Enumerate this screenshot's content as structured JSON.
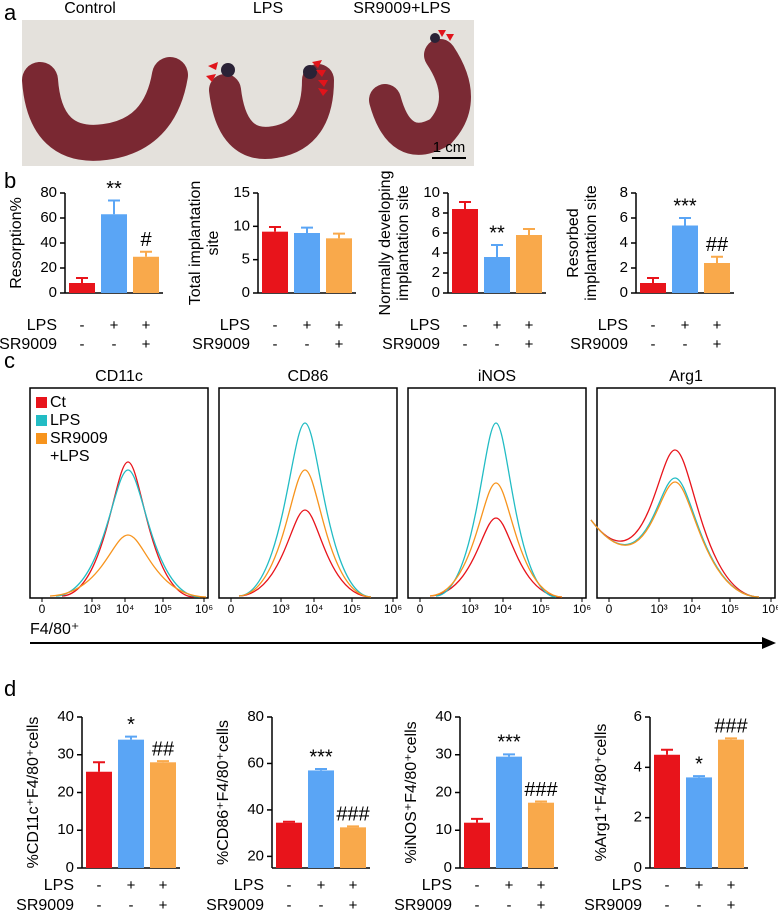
{
  "panel_labels": [
    "a",
    "b",
    "c",
    "d"
  ],
  "photo": {
    "groups": [
      "Control",
      "LPS",
      "SR9009+LPS"
    ],
    "scale_bar": "1 cm"
  },
  "chart_data": [
    {
      "type": "bar",
      "ylabel": [
        "Resorption%"
      ],
      "ylim": [
        0,
        80
      ],
      "yticks": [
        0,
        20,
        40,
        60,
        80
      ],
      "values": [
        8,
        63,
        29
      ],
      "errors": [
        4,
        11,
        4
      ],
      "colors": [
        "#e8141b",
        "#5aa5f5",
        "#f9a94b"
      ],
      "annotations": [
        null,
        "**",
        "#"
      ],
      "conditions": [
        {
          "name": "LPS",
          "values": [
            "-",
            "+",
            "+"
          ]
        },
        {
          "name": "SR9009",
          "values": [
            "-",
            "-",
            "+"
          ]
        }
      ]
    },
    {
      "type": "bar",
      "ylabel": [
        "Total implantation",
        "site"
      ],
      "ylim": [
        0,
        15
      ],
      "yticks": [
        0,
        5,
        10,
        15
      ],
      "values": [
        9.2,
        9.0,
        8.2
      ],
      "errors": [
        0.7,
        0.8,
        0.7
      ],
      "colors": [
        "#e8141b",
        "#5aa5f5",
        "#f9a94b"
      ],
      "annotations": [
        null,
        null,
        null
      ],
      "conditions": [
        {
          "name": "LPS",
          "values": [
            "-",
            "+",
            "+"
          ]
        },
        {
          "name": "SR9009",
          "values": [
            "-",
            "-",
            "+"
          ]
        }
      ]
    },
    {
      "type": "bar",
      "ylabel": [
        "Normally developing",
        "implantation site"
      ],
      "ylim": [
        0,
        10
      ],
      "yticks": [
        0,
        2,
        4,
        6,
        8,
        10
      ],
      "values": [
        8.4,
        3.6,
        5.8
      ],
      "errors": [
        0.7,
        1.2,
        0.6
      ],
      "colors": [
        "#e8141b",
        "#5aa5f5",
        "#f9a94b"
      ],
      "annotations": [
        null,
        "**",
        null
      ],
      "conditions": [
        {
          "name": "LPS",
          "values": [
            "-",
            "+",
            "+"
          ]
        },
        {
          "name": "SR9009",
          "values": [
            "-",
            "-",
            "+"
          ]
        }
      ]
    },
    {
      "type": "bar",
      "ylabel": [
        "Resorbed",
        "implantation site"
      ],
      "ylim": [
        0,
        8
      ],
      "yticks": [
        0,
        2,
        4,
        6,
        8
      ],
      "values": [
        0.8,
        5.4,
        2.4
      ],
      "errors": [
        0.4,
        0.6,
        0.5
      ],
      "colors": [
        "#e8141b",
        "#5aa5f5",
        "#f9a94b"
      ],
      "annotations": [
        null,
        "***",
        "##"
      ],
      "conditions": [
        {
          "name": "LPS",
          "values": [
            "-",
            "+",
            "+"
          ]
        },
        {
          "name": "SR9009",
          "values": [
            "-",
            "-",
            "+"
          ]
        }
      ]
    },
    {
      "type": "bar",
      "ylabel": [
        "%CD11c⁺F4/80⁺cells"
      ],
      "ylim": [
        0,
        40
      ],
      "yticks": [
        0,
        10,
        20,
        30,
        40
      ],
      "values": [
        25.5,
        34,
        28
      ],
      "errors": [
        2.5,
        0.8,
        0.3
      ],
      "colors": [
        "#e8141b",
        "#5aa5f5",
        "#f9a94b"
      ],
      "annotations": [
        null,
        "*",
        "##"
      ],
      "conditions": [
        {
          "name": "LPS",
          "values": [
            "-",
            "+",
            "+"
          ]
        },
        {
          "name": "SR9009",
          "values": [
            "-",
            "-",
            "+"
          ]
        }
      ]
    },
    {
      "type": "bar",
      "ylabel": [
        "%CD86⁺F4/80⁺cells"
      ],
      "ylim": [
        15,
        80
      ],
      "yticks": [
        20,
        40,
        60,
        80
      ],
      "values": [
        34.5,
        57,
        32.5
      ],
      "errors": [
        0.4,
        0.6,
        0.4
      ],
      "colors": [
        "#e8141b",
        "#5aa5f5",
        "#f9a94b"
      ],
      "annotations": [
        null,
        "***",
        "###"
      ],
      "conditions": [
        {
          "name": "LPS",
          "values": [
            "-",
            "+",
            "+"
          ]
        },
        {
          "name": "SR9009",
          "values": [
            "-",
            "-",
            "+"
          ]
        }
      ]
    },
    {
      "type": "bar",
      "ylabel": [
        "%iNOS⁺F4/80⁺cells"
      ],
      "ylim": [
        0,
        40
      ],
      "yticks": [
        0,
        10,
        20,
        30,
        40
      ],
      "values": [
        12,
        29.5,
        17.3
      ],
      "errors": [
        1,
        0.6,
        0.3
      ],
      "colors": [
        "#e8141b",
        "#5aa5f5",
        "#f9a94b"
      ],
      "annotations": [
        null,
        "***",
        "###"
      ],
      "conditions": [
        {
          "name": "LPS",
          "values": [
            "-",
            "+",
            "+"
          ]
        },
        {
          "name": "SR9009",
          "values": [
            "-",
            "-",
            "+"
          ]
        }
      ]
    },
    {
      "type": "bar",
      "ylabel": [
        "%Arg1⁺F4/80⁺cells"
      ],
      "ylim": [
        0,
        6
      ],
      "yticks": [
        0,
        2,
        4,
        6
      ],
      "values": [
        4.5,
        3.6,
        5.1
      ],
      "errors": [
        0.2,
        0.05,
        0.05
      ],
      "colors": [
        "#e8141b",
        "#5aa5f5",
        "#f9a94b"
      ],
      "annotations": [
        null,
        "*",
        "###"
      ],
      "conditions": [
        {
          "name": "LPS",
          "values": [
            "-",
            "+",
            "+"
          ]
        },
        {
          "name": "SR9009",
          "values": [
            "-",
            "-",
            "+"
          ]
        }
      ]
    }
  ],
  "flow": {
    "panels": [
      "CD11c",
      "CD86",
      "iNOS",
      "Arg1"
    ],
    "xticks": [
      "0",
      "10³",
      "10⁴",
      "10⁵",
      "10⁶"
    ],
    "xlabel": "F4/80⁺",
    "legend": [
      {
        "name": [
          "Ct"
        ],
        "color": "#e8141b"
      },
      {
        "name": [
          "LPS"
        ],
        "color": "#22bcc4"
      },
      {
        "name": [
          "SR9009",
          "+LPS"
        ],
        "color": "#f7941d"
      }
    ]
  }
}
